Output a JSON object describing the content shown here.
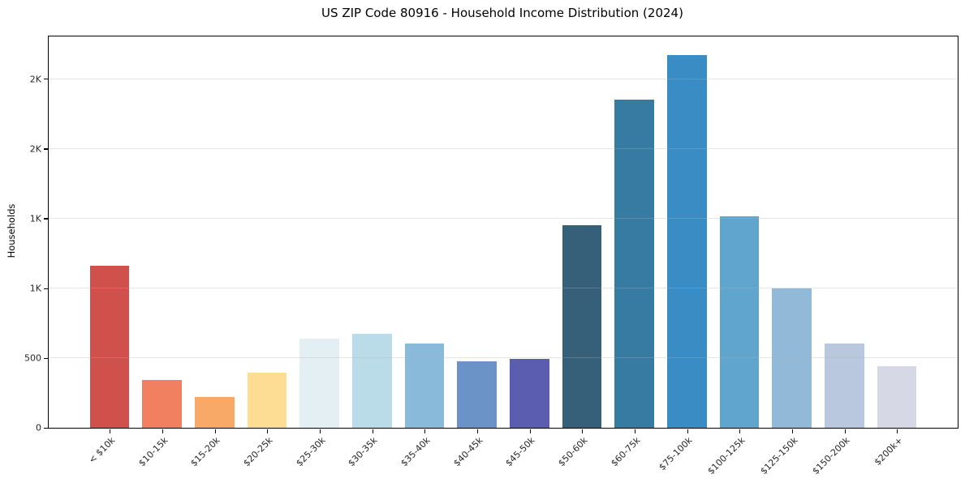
{
  "title": "US ZIP Code 80916 - Household Income Distribution (2024)",
  "chart_data": {
    "type": "bar",
    "title": "US ZIP Code 80916 - Household Income Distribution (2024)",
    "xlabel": "",
    "ylabel": "Households",
    "categories": [
      "< $10k",
      "$10-15k",
      "$15-20k",
      "$20-25k",
      "$25-30k",
      "$30-35k",
      "$35-40k",
      "$40-45k",
      "$45-50k",
      "$50-60k",
      "$60-75k",
      "$75-100k",
      "$100-125k",
      "$125-150k",
      "$150-200k",
      "$200k+"
    ],
    "values": [
      1160,
      340,
      220,
      395,
      640,
      675,
      605,
      475,
      495,
      1450,
      2355,
      2670,
      1515,
      1000,
      605,
      440
    ],
    "bar_colors": [
      "#d0514b",
      "#f08060",
      "#f9a967",
      "#fcdd93",
      "#e4eff4",
      "#badce9",
      "#8abad9",
      "#6b93c8",
      "#5b5db1",
      "#36607a",
      "#377ba3",
      "#3a8dc4",
      "#5fa5cd",
      "#92b9d8",
      "#b9c8de",
      "#d7d8e6"
    ],
    "ylim": [
      0,
      2805
    ],
    "yticks": [
      {
        "value": 0,
        "label": "0"
      },
      {
        "value": 500,
        "label": "500"
      },
      {
        "value": 1000,
        "label": "1K"
      },
      {
        "value": 1500,
        "label": "1K"
      },
      {
        "value": 2000,
        "label": "2K"
      },
      {
        "value": 2500,
        "label": "2K"
      }
    ],
    "grid": {
      "axis": "y",
      "on": true,
      "above_bars": true,
      "color": "#b2b2b2",
      "alpha": 0.32
    },
    "legend": "none",
    "colors": {
      "background": "#ffffff",
      "spine": "#000000",
      "tick_label": "#262626",
      "title_text": "#000000"
    }
  }
}
